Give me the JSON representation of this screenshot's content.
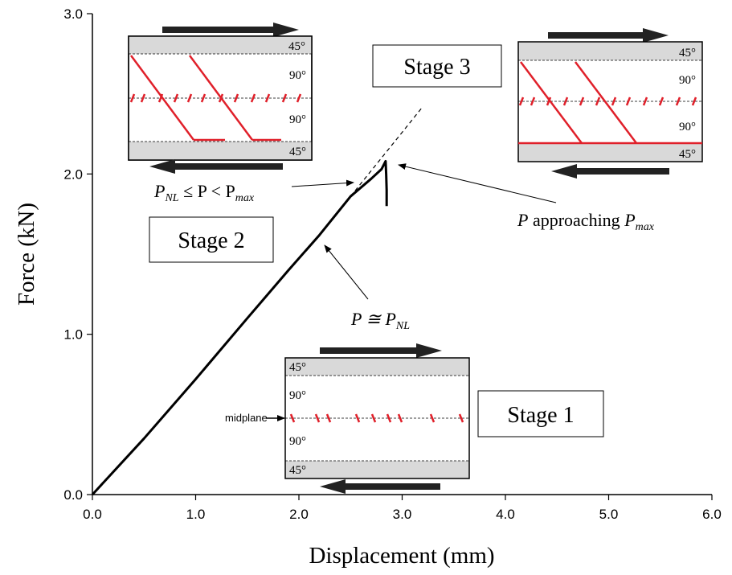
{
  "chart_data": {
    "type": "line",
    "xlabel": "Displacement (mm)",
    "ylabel": "Force (kN)",
    "xlim": [
      0,
      6
    ],
    "ylim": [
      0,
      3
    ],
    "x_ticks": [
      "0.0",
      "1.0",
      "2.0",
      "3.0",
      "4.0",
      "5.0",
      "6.0"
    ],
    "y_ticks": [
      "0.0",
      "1.0",
      "2.0",
      "3.0"
    ],
    "grid": false,
    "series": [
      {
        "x": [
          0.0,
          0.5,
          1.0,
          1.5,
          1.9,
          2.2,
          2.5,
          2.7,
          2.8,
          2.84,
          2.845,
          2.85,
          2.85
        ],
        "y": [
          0.0,
          0.35,
          0.72,
          1.1,
          1.4,
          1.62,
          1.86,
          1.97,
          2.03,
          2.08,
          2.0,
          1.9,
          1.8
        ]
      }
    ],
    "extrapolation": {
      "x": [
        2.5,
        3.2
      ],
      "y": [
        1.86,
        2.42
      ]
    }
  },
  "stages": {
    "stage1": "Stage 1",
    "stage2": "Stage 2",
    "stage3": "Stage 3"
  },
  "annotations": {
    "pnl_prefix": "P ≅ P",
    "pnl_sub": "NL",
    "range_p1": "P",
    "range_sub1": "NL",
    "range_mid": " ≤ P < P",
    "range_sub2": "max",
    "approach_p": "P",
    "approach_text": " approaching ",
    "approach_p2": "P",
    "approach_sub": "max"
  },
  "ply_labels": {
    "outer": "45°",
    "inner": "90°"
  },
  "midplane_label": "midplane"
}
